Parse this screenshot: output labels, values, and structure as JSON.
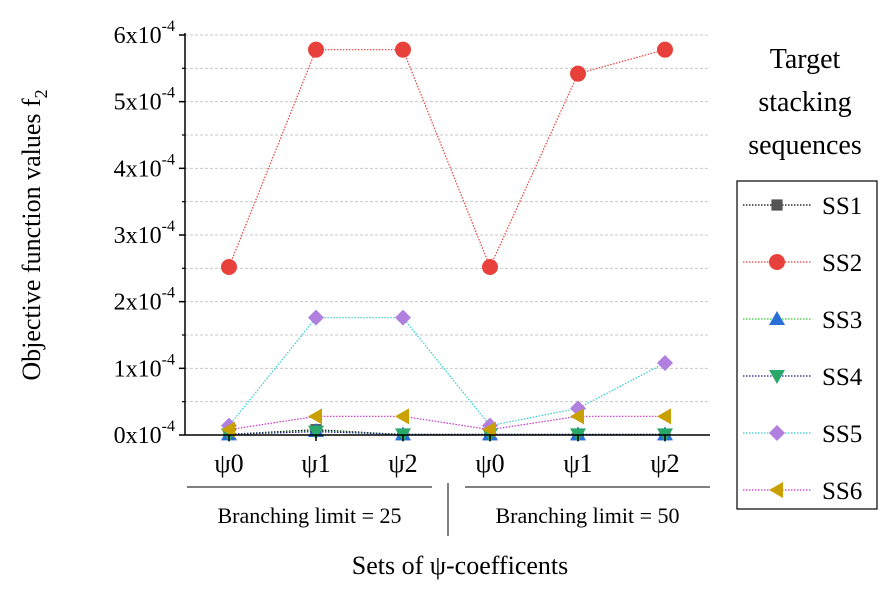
{
  "chart_data": {
    "type": "line",
    "title": "",
    "xlabel": "Sets of ψ-coefficents",
    "ylabel_main": "Objective function values f",
    "ylabel_sub": "2",
    "ylim": [
      0,
      0.0006
    ],
    "ytick_values": [
      0,
      0.0001,
      0.0002,
      0.0003,
      0.0004,
      0.0005,
      0.0006
    ],
    "yticks": [
      {
        "base": "0x10",
        "exp": "-4"
      },
      {
        "base": "1x10",
        "exp": "-4"
      },
      {
        "base": "2x10",
        "exp": "-4"
      },
      {
        "base": "3x10",
        "exp": "-4"
      },
      {
        "base": "4x10",
        "exp": "-4"
      },
      {
        "base": "5x10",
        "exp": "-4"
      },
      {
        "base": "6x10",
        "exp": "-4"
      }
    ],
    "categories": [
      "ψ0",
      "ψ1",
      "ψ2",
      "ψ0",
      "ψ1",
      "ψ2"
    ],
    "groups": [
      {
        "label": "Branching limit = 25",
        "from": 0,
        "to": 2
      },
      {
        "label": "Branching limit = 50",
        "from": 3,
        "to": 5
      }
    ],
    "grid": "horizontal dashed",
    "legend": {
      "title": [
        "Target",
        "stacking",
        "sequences"
      ],
      "placement": "right"
    },
    "series": [
      {
        "name": "SS1",
        "color": "#555555",
        "line_color": "#000000",
        "marker": "square",
        "values": [
          1e-06,
          8e-06,
          5e-07,
          5e-07,
          5e-07,
          5e-07
        ]
      },
      {
        "name": "SS2",
        "color": "#e8413c",
        "line_color": "#e8413c",
        "marker": "circle",
        "values": [
          0.000252,
          0.000578,
          0.000578,
          0.000252,
          0.000542,
          0.000578
        ]
      },
      {
        "name": "SS3",
        "color": "#2a6fd6",
        "line_color": "#33cc33",
        "marker": "triangle-up",
        "values": [
          1e-06,
          6e-06,
          1e-06,
          1e-06,
          1e-06,
          1e-06
        ]
      },
      {
        "name": "SS4",
        "color": "#2aa86a",
        "line_color": "#1a1a8c",
        "marker": "triangle-down",
        "values": [
          1e-06,
          5e-06,
          1e-06,
          1e-06,
          1e-06,
          1e-06
        ]
      },
      {
        "name": "SS5",
        "color": "#b07fe0",
        "line_color": "#33cccc",
        "marker": "diamond",
        "values": [
          1.4e-05,
          0.000176,
          0.000176,
          1.4e-05,
          4e-05,
          0.000108
        ]
      },
      {
        "name": "SS6",
        "color": "#c8a000",
        "line_color": "#cc33cc",
        "marker": "triangle-left",
        "values": [
          8e-06,
          2.8e-05,
          2.8e-05,
          8e-06,
          2.8e-05,
          2.8e-05
        ]
      }
    ]
  }
}
